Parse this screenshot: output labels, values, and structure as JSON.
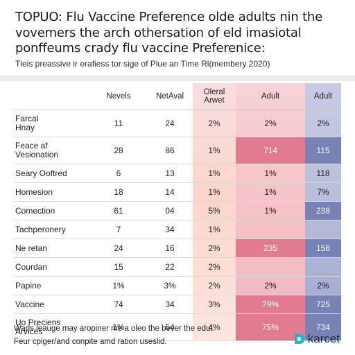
{
  "title": "TOPUO: Flu Vaccine Preference olde adults nin the vovemers the arch othersation of eld imasiotal ponffeums crady flu vaccine Preferenice:",
  "subtitle": "Tleis preassive ir erafiess tor sige of Plue an Time Rl(membery 2020)",
  "colors": {
    "header_band": "#f7dede",
    "pink_col": "#f5c2c6",
    "pink_strong": "#e07b90",
    "blue_col": "#b7bcd8",
    "blue_strong": "#7882b4",
    "orange_soft": "#fbd6cc"
  },
  "chart_data": {
    "type": "table",
    "columns": [
      "",
      "Nevels",
      "NetAval",
      "Oleral\nArwet",
      "Adult",
      "Adult"
    ],
    "rows": [
      {
        "label": "Farcal\nHnay",
        "values": [
          "11",
          "24",
          "2%",
          "2%",
          "2%"
        ]
      },
      {
        "label": "Feace af\nVesionation",
        "values": [
          "28",
          "86",
          "1%",
          "714",
          "115"
        ]
      },
      {
        "label": "Seary Ooftred",
        "values": [
          "6",
          "13",
          "1%",
          "1%",
          "118"
        ]
      },
      {
        "label": "Homesion",
        "values": [
          "18",
          "14",
          "1%",
          "1%",
          "7%"
        ]
      },
      {
        "label": "Comection",
        "values": [
          "61",
          "04",
          "5%",
          "1%",
          "238"
        ]
      },
      {
        "label": "Tachperonery",
        "values": [
          "7",
          "34",
          "1%",
          "",
          ""
        ]
      },
      {
        "label": "Ne retan",
        "values": [
          "24",
          "16",
          "2%",
          "235",
          "156"
        ]
      },
      {
        "label": "Courdan",
        "values": [
          "15",
          "22",
          "2%",
          "",
          ""
        ]
      },
      {
        "label": "Papine",
        "values": [
          "1%",
          "3%",
          "2%",
          "2%",
          "2%"
        ]
      },
      {
        "label": "Vaccine",
        "values": [
          "74",
          "34",
          "3%",
          "79%",
          "725"
        ]
      },
      {
        "label": "Uo Preciens\nArvices",
        "values": [
          "1%",
          "54",
          "4%",
          "75%",
          "734"
        ]
      }
    ]
  },
  "footer": {
    "line1": "Warls leauge may aropiner me a oleo the bever the edut.",
    "line2": "Feur cpiger/and conpite amd ration useslid."
  },
  "logo": {
    "text": "karcet",
    "icon": "d-logo-icon"
  }
}
